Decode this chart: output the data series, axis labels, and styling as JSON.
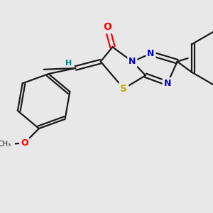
{
  "bg_color": "#e8e8e8",
  "atom_colors": {
    "O": "#ff0000",
    "N": "#0000cc",
    "S": "#ccaa00",
    "C": "#1a1a1a",
    "H": "#008080"
  },
  "bond_color": "#1a1a1a",
  "lw": 1.6
}
